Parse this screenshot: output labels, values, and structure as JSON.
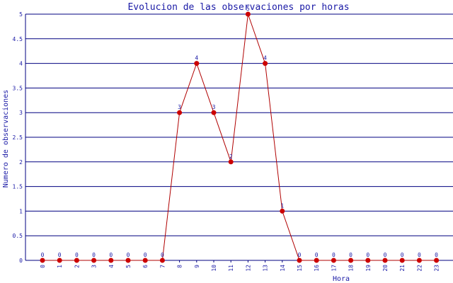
{
  "chart_data": {
    "type": "line",
    "title": "Evolucion de las observaciones por horas",
    "xlabel": "Hora",
    "ylabel": "Numero de observaciones",
    "categories": [
      "0",
      "1",
      "2",
      "3",
      "4",
      "5",
      "6",
      "7",
      "8",
      "9",
      "10",
      "11",
      "12",
      "13",
      "14",
      "15",
      "16",
      "17",
      "18",
      "19",
      "20",
      "21",
      "22",
      "23"
    ],
    "values": [
      0,
      0,
      0,
      0,
      0,
      0,
      0,
      0,
      3,
      4,
      3,
      2,
      5,
      4,
      1,
      0,
      0,
      0,
      0,
      0,
      0,
      0,
      0,
      0
    ],
    "ylim": [
      0,
      5
    ],
    "yticks": [
      "0",
      "0.5",
      "1",
      "1.5",
      "2",
      "2.5",
      "3",
      "3.5",
      "4",
      "4.5",
      "5"
    ],
    "grid": true,
    "colors": {
      "line": "#b00000",
      "marker": "#cc0000",
      "grid": "#000080",
      "text": "#1a1aa6"
    }
  }
}
